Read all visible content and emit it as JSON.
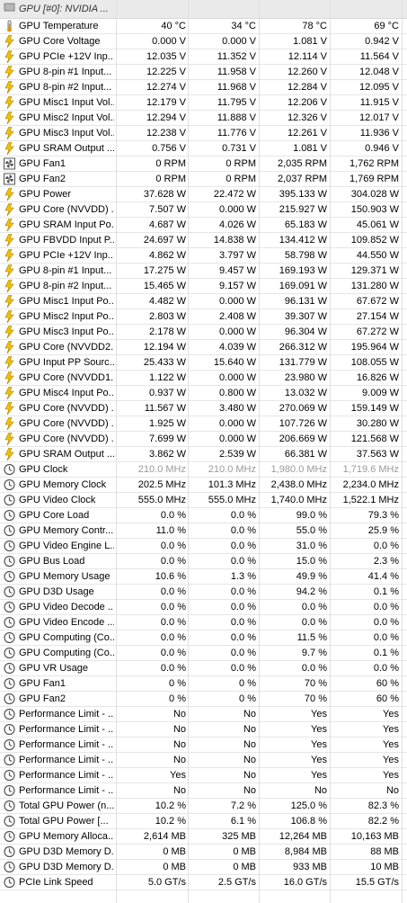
{
  "header": {
    "title": "GPU [#0]: NVIDIA ..."
  },
  "rows": [
    {
      "icon": "thermometer",
      "name": "GPU Temperature",
      "v": [
        "40 °C",
        "34 °C",
        "78 °C",
        "69 °C"
      ]
    },
    {
      "icon": "bolt",
      "name": "GPU Core Voltage",
      "v": [
        "0.000 V",
        "0.000 V",
        "1.081 V",
        "0.942 V"
      ]
    },
    {
      "icon": "bolt",
      "name": "GPU PCIe +12V Inp...",
      "v": [
        "12.035 V",
        "11.352 V",
        "12.114 V",
        "11.564 V"
      ]
    },
    {
      "icon": "bolt",
      "name": "GPU 8-pin #1 Input...",
      "v": [
        "12.225 V",
        "11.958 V",
        "12.260 V",
        "12.048 V"
      ]
    },
    {
      "icon": "bolt",
      "name": "GPU 8-pin #2 Input...",
      "v": [
        "12.274 V",
        "11.968 V",
        "12.284 V",
        "12.095 V"
      ]
    },
    {
      "icon": "bolt",
      "name": "GPU Misc1 Input Vol...",
      "v": [
        "12.179 V",
        "11.795 V",
        "12.206 V",
        "11.915 V"
      ]
    },
    {
      "icon": "bolt",
      "name": "GPU Misc2 Input Vol...",
      "v": [
        "12.294 V",
        "11.888 V",
        "12.326 V",
        "12.017 V"
      ]
    },
    {
      "icon": "bolt",
      "name": "GPU Misc3 Input Vol...",
      "v": [
        "12.238 V",
        "11.776 V",
        "12.261 V",
        "11.936 V"
      ]
    },
    {
      "icon": "bolt",
      "name": "GPU SRAM Output ...",
      "v": [
        "0.756 V",
        "0.731 V",
        "1.081 V",
        "0.946 V"
      ]
    },
    {
      "icon": "fan",
      "name": "GPU Fan1",
      "v": [
        "0 RPM",
        "0 RPM",
        "2,035 RPM",
        "1,762 RPM"
      ]
    },
    {
      "icon": "fan",
      "name": "GPU Fan2",
      "v": [
        "0 RPM",
        "0 RPM",
        "2,037 RPM",
        "1,769 RPM"
      ]
    },
    {
      "icon": "bolt",
      "name": "GPU Power",
      "v": [
        "37.628 W",
        "22.472 W",
        "395.133 W",
        "304.028 W"
      ]
    },
    {
      "icon": "bolt",
      "name": "GPU Core (NVVDD) ...",
      "v": [
        "7.507 W",
        "0.000 W",
        "215.927 W",
        "150.903 W"
      ]
    },
    {
      "icon": "bolt",
      "name": "GPU SRAM Input Po...",
      "v": [
        "4.687 W",
        "4.026 W",
        "65.183 W",
        "45.061 W"
      ]
    },
    {
      "icon": "bolt",
      "name": "GPU FBVDD Input P...",
      "v": [
        "24.697 W",
        "14.838 W",
        "134.412 W",
        "109.852 W"
      ]
    },
    {
      "icon": "bolt",
      "name": "GPU PCIe +12V Inp...",
      "v": [
        "4.862 W",
        "3.797 W",
        "58.798 W",
        "44.550 W"
      ]
    },
    {
      "icon": "bolt",
      "name": "GPU 8-pin #1 Input...",
      "v": [
        "17.275 W",
        "9.457 W",
        "169.193 W",
        "129.371 W"
      ]
    },
    {
      "icon": "bolt",
      "name": "GPU 8-pin #2 Input...",
      "v": [
        "15.465 W",
        "9.157 W",
        "169.091 W",
        "131.280 W"
      ]
    },
    {
      "icon": "bolt",
      "name": "GPU Misc1 Input Po...",
      "v": [
        "4.482 W",
        "0.000 W",
        "96.131 W",
        "67.672 W"
      ]
    },
    {
      "icon": "bolt",
      "name": "GPU Misc2 Input Po...",
      "v": [
        "2.803 W",
        "2.408 W",
        "39.307 W",
        "27.154 W"
      ]
    },
    {
      "icon": "bolt",
      "name": "GPU Misc3 Input Po...",
      "v": [
        "2.178 W",
        "0.000 W",
        "96.304 W",
        "67.272 W"
      ]
    },
    {
      "icon": "bolt",
      "name": "GPU Core (NVVDD2...",
      "v": [
        "12.194 W",
        "4.039 W",
        "266.312 W",
        "195.964 W"
      ]
    },
    {
      "icon": "bolt",
      "name": "GPU Input PP Sourc...",
      "v": [
        "25.433 W",
        "15.640 W",
        "131.779 W",
        "108.055 W"
      ]
    },
    {
      "icon": "bolt",
      "name": "GPU Core (NVVDD1...",
      "v": [
        "1.122 W",
        "0.000 W",
        "23.980 W",
        "16.826 W"
      ]
    },
    {
      "icon": "bolt",
      "name": "GPU Misc4 Input Po...",
      "v": [
        "0.937 W",
        "0.800 W",
        "13.032 W",
        "9.009 W"
      ]
    },
    {
      "icon": "bolt",
      "name": "GPU Core (NVVDD) ...",
      "v": [
        "11.567 W",
        "3.480 W",
        "270.069 W",
        "159.149 W"
      ]
    },
    {
      "icon": "bolt",
      "name": "GPU Core (NVVDD) ...",
      "v": [
        "1.925 W",
        "0.000 W",
        "107.726 W",
        "30.280 W"
      ]
    },
    {
      "icon": "bolt",
      "name": "GPU Core (NVVDD) ...",
      "v": [
        "7.699 W",
        "0.000 W",
        "206.669 W",
        "121.568 W"
      ]
    },
    {
      "icon": "bolt",
      "name": "GPU SRAM Output ...",
      "v": [
        "3.862 W",
        "2.539 W",
        "66.381 W",
        "37.563 W"
      ]
    },
    {
      "icon": "clock",
      "name": "GPU Clock",
      "v": [
        "210.0 MHz",
        "210.0 MHz",
        "1,980.0 MHz",
        "1,719.6 MHz"
      ],
      "dim": true
    },
    {
      "icon": "clock",
      "name": "GPU Memory Clock",
      "v": [
        "202.5 MHz",
        "101.3 MHz",
        "2,438.0 MHz",
        "2,234.0 MHz"
      ]
    },
    {
      "icon": "clock",
      "name": "GPU Video Clock",
      "v": [
        "555.0 MHz",
        "555.0 MHz",
        "1,740.0 MHz",
        "1,522.1 MHz"
      ]
    },
    {
      "icon": "clock",
      "name": "GPU Core Load",
      "v": [
        "0.0 %",
        "0.0 %",
        "99.0 %",
        "79.3 %"
      ]
    },
    {
      "icon": "clock",
      "name": "GPU Memory Contr...",
      "v": [
        "11.0 %",
        "0.0 %",
        "55.0 %",
        "25.9 %"
      ]
    },
    {
      "icon": "clock",
      "name": "GPU Video Engine L...",
      "v": [
        "0.0 %",
        "0.0 %",
        "31.0 %",
        "0.0 %"
      ]
    },
    {
      "icon": "clock",
      "name": "GPU Bus Load",
      "v": [
        "0.0 %",
        "0.0 %",
        "15.0 %",
        "2.3 %"
      ]
    },
    {
      "icon": "clock",
      "name": "GPU Memory Usage",
      "v": [
        "10.6 %",
        "1.3 %",
        "49.9 %",
        "41.4 %"
      ]
    },
    {
      "icon": "clock",
      "name": "GPU D3D Usage",
      "v": [
        "0.0 %",
        "0.0 %",
        "94.2 %",
        "0.1 %"
      ]
    },
    {
      "icon": "clock",
      "name": "GPU Video Decode ...",
      "v": [
        "0.0 %",
        "0.0 %",
        "0.0 %",
        "0.0 %"
      ]
    },
    {
      "icon": "clock",
      "name": "GPU Video Encode ...",
      "v": [
        "0.0 %",
        "0.0 %",
        "0.0 %",
        "0.0 %"
      ]
    },
    {
      "icon": "clock",
      "name": "GPU Computing (Co...",
      "v": [
        "0.0 %",
        "0.0 %",
        "11.5 %",
        "0.0 %"
      ]
    },
    {
      "icon": "clock",
      "name": "GPU Computing (Co...",
      "v": [
        "0.0 %",
        "0.0 %",
        "9.7 %",
        "0.1 %"
      ]
    },
    {
      "icon": "clock",
      "name": "GPU VR Usage",
      "v": [
        "0.0 %",
        "0.0 %",
        "0.0 %",
        "0.0 %"
      ]
    },
    {
      "icon": "clock",
      "name": "GPU Fan1",
      "v": [
        "0 %",
        "0 %",
        "70 %",
        "60 %"
      ]
    },
    {
      "icon": "clock",
      "name": "GPU Fan2",
      "v": [
        "0 %",
        "0 %",
        "70 %",
        "60 %"
      ]
    },
    {
      "icon": "clock",
      "name": "Performance Limit - ...",
      "v": [
        "No",
        "No",
        "Yes",
        "Yes"
      ]
    },
    {
      "icon": "clock",
      "name": "Performance Limit - ...",
      "v": [
        "No",
        "No",
        "Yes",
        "Yes"
      ]
    },
    {
      "icon": "clock",
      "name": "Performance Limit - ...",
      "v": [
        "No",
        "No",
        "Yes",
        "Yes"
      ]
    },
    {
      "icon": "clock",
      "name": "Performance Limit - ...",
      "v": [
        "No",
        "No",
        "Yes",
        "Yes"
      ]
    },
    {
      "icon": "clock",
      "name": "Performance Limit - ...",
      "v": [
        "Yes",
        "No",
        "Yes",
        "Yes"
      ]
    },
    {
      "icon": "clock",
      "name": "Performance Limit - ...",
      "v": [
        "No",
        "No",
        "No",
        "No"
      ]
    },
    {
      "icon": "clock",
      "name": "Total GPU Power (n...",
      "v": [
        "10.2 %",
        "7.2 %",
        "125.0 %",
        "82.3 %"
      ]
    },
    {
      "icon": "clock",
      "name": "Total GPU Power [...",
      "v": [
        "10.2 %",
        "6.1 %",
        "106.8 %",
        "82.2 %"
      ]
    },
    {
      "icon": "clock",
      "name": "GPU Memory Alloca...",
      "v": [
        "2,614 MB",
        "325 MB",
        "12,264 MB",
        "10,163 MB"
      ]
    },
    {
      "icon": "clock",
      "name": "GPU D3D Memory D...",
      "v": [
        "0 MB",
        "0 MB",
        "8,984 MB",
        "88 MB"
      ]
    },
    {
      "icon": "clock",
      "name": "GPU D3D Memory D...",
      "v": [
        "0 MB",
        "0 MB",
        "933 MB",
        "10 MB"
      ]
    },
    {
      "icon": "clock",
      "name": "PCIe Link Speed",
      "v": [
        "5.0 GT/s",
        "2.5 GT/s",
        "16.0 GT/s",
        "15.5 GT/s"
      ]
    }
  ],
  "colors": {
    "bolt": "#f2c500",
    "thermometer": "#d89a00",
    "fan": "#555555",
    "clock": "#555555"
  }
}
